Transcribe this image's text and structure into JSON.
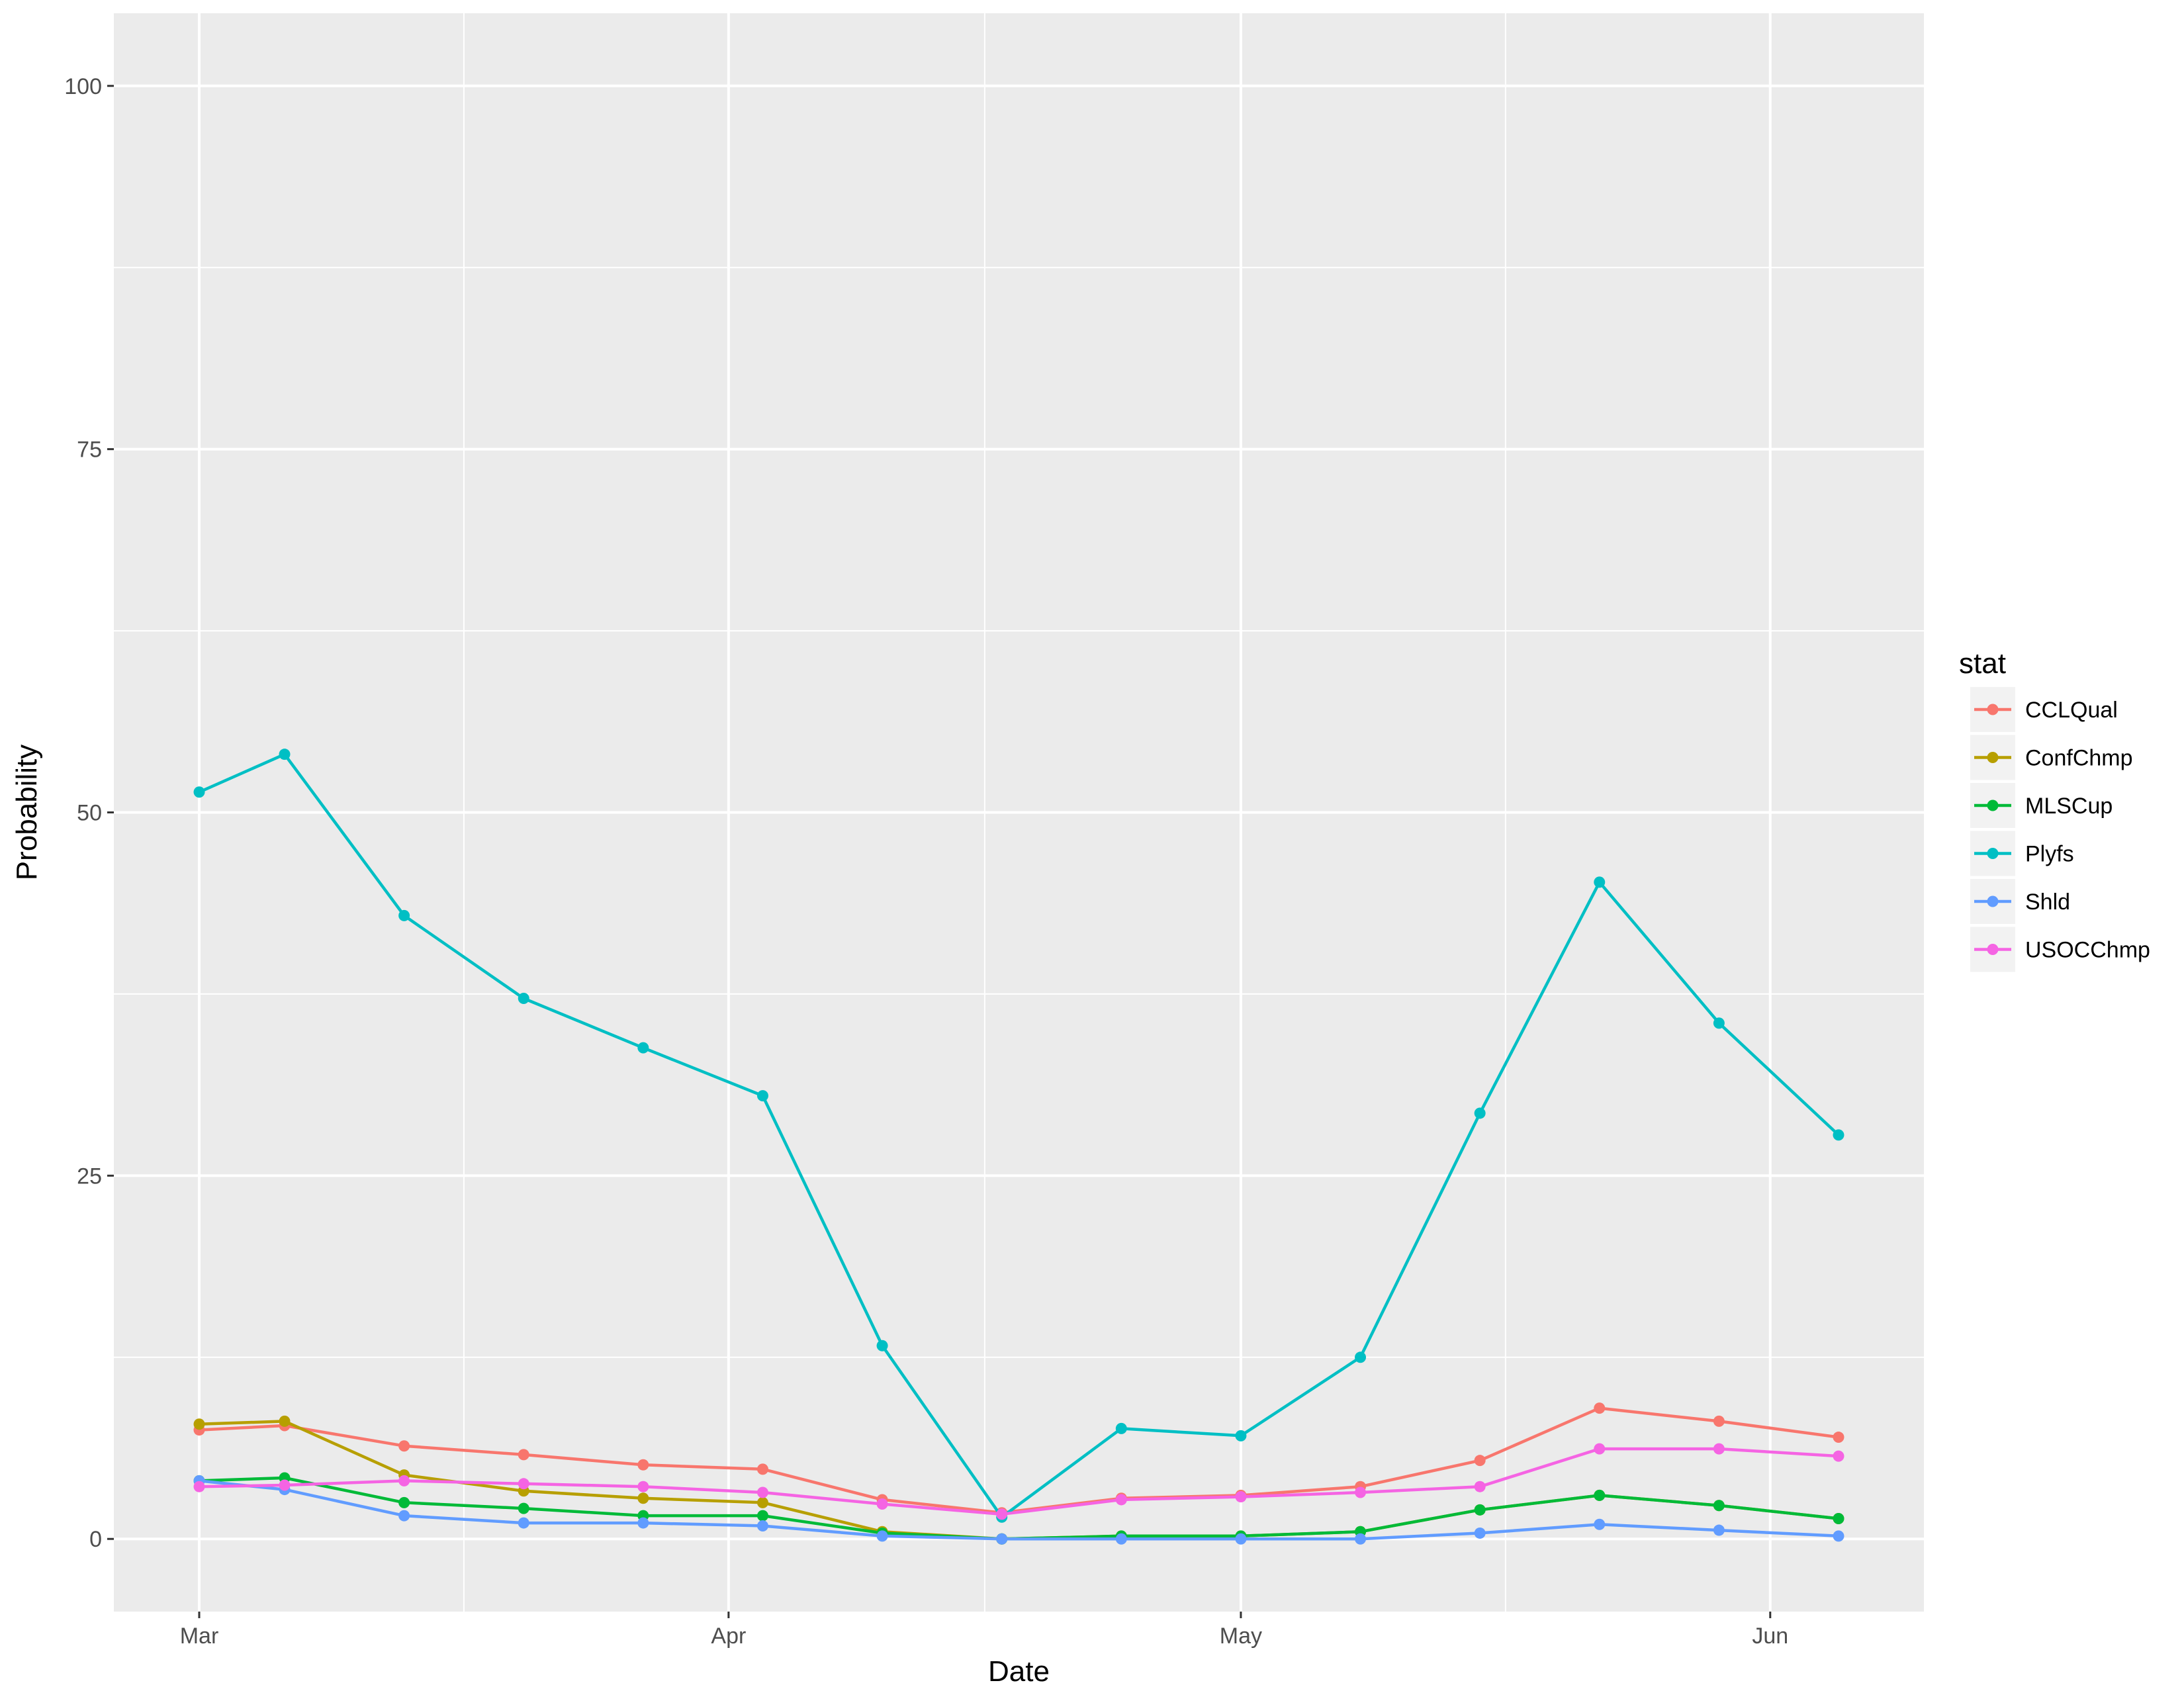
{
  "chart_data": {
    "type": "line",
    "title": "",
    "xlabel": "Date",
    "ylabel": "Probability",
    "x_ticks": [
      "Mar",
      "Apr",
      "May",
      "Jun"
    ],
    "x_tick_dates": [
      "2017-03-01",
      "2017-04-01",
      "2017-05-01",
      "2017-06-01"
    ],
    "xlim": [
      "2017-02-24",
      "2017-06-10"
    ],
    "y_ticks": [
      0,
      25,
      50,
      75,
      100
    ],
    "ylim": [
      -5,
      105
    ],
    "grid": true,
    "background": "#ebebeb",
    "legend": {
      "title": "stat",
      "position": "right"
    },
    "x": [
      "2017-03-01",
      "2017-03-06",
      "2017-03-13",
      "2017-03-20",
      "2017-03-27",
      "2017-04-03",
      "2017-04-10",
      "2017-04-17",
      "2017-04-24",
      "2017-05-01",
      "2017-05-08",
      "2017-05-15",
      "2017-05-22",
      "2017-05-29",
      "2017-06-05"
    ],
    "series": [
      {
        "name": "CCLQual",
        "color": "#F8766D",
        "values": [
          7.5,
          7.8,
          6.4,
          5.8,
          5.1,
          4.8,
          2.7,
          1.8,
          2.8,
          3.0,
          3.6,
          5.4,
          9.0,
          8.1,
          7.0
        ]
      },
      {
        "name": "ConfChmp",
        "color": "#B79F00",
        "values": [
          7.9,
          8.1,
          4.4,
          3.3,
          2.8,
          2.5,
          0.5,
          0.0,
          0.2,
          0.2,
          0.5,
          2.0,
          3.0,
          2.3,
          1.4
        ]
      },
      {
        "name": "MLSCup",
        "color": "#00BA38",
        "values": [
          4.0,
          4.2,
          2.5,
          2.1,
          1.6,
          1.6,
          0.4,
          0.0,
          0.2,
          0.2,
          0.5,
          2.0,
          3.0,
          2.3,
          1.4
        ]
      },
      {
        "name": "Plyfs",
        "color": "#00BFC4",
        "values": [
          51.4,
          54.0,
          42.9,
          37.2,
          33.8,
          30.5,
          13.3,
          1.5,
          7.6,
          7.1,
          12.5,
          29.3,
          45.2,
          35.5,
          27.8
        ]
      },
      {
        "name": "Shld",
        "color": "#619CFF",
        "values": [
          4.0,
          3.4,
          1.6,
          1.1,
          1.1,
          0.9,
          0.2,
          0.0,
          0.0,
          0.0,
          0.0,
          0.4,
          1.0,
          0.6,
          0.2
        ]
      },
      {
        "name": "USOCChmp",
        "color": "#F564E3",
        "values": [
          3.6,
          3.7,
          4.0,
          3.8,
          3.6,
          3.2,
          2.4,
          1.7,
          2.7,
          2.9,
          3.2,
          3.6,
          6.2,
          6.2,
          5.7
        ]
      }
    ]
  }
}
